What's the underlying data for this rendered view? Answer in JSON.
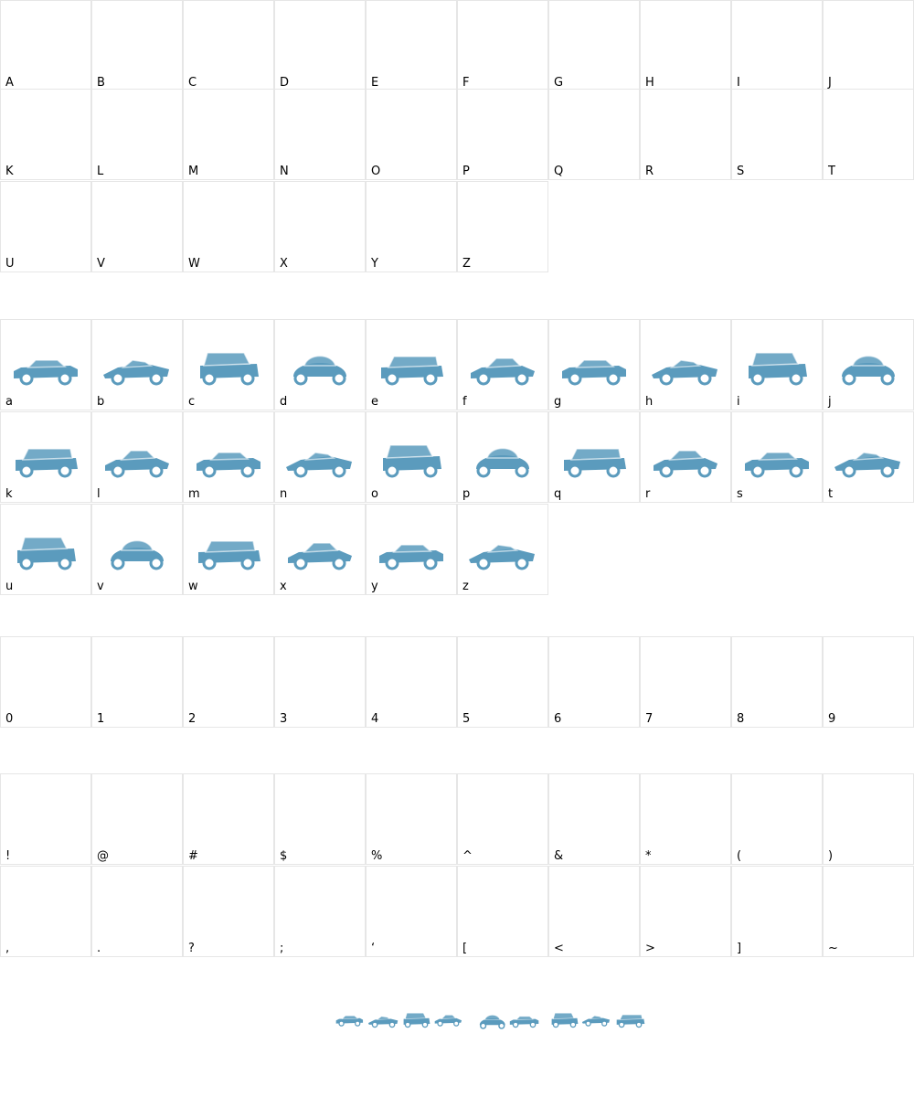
{
  "glyph_color": "#5b9bbd",
  "uppercase": [
    "A",
    "B",
    "C",
    "D",
    "E",
    "F",
    "G",
    "H",
    "I",
    "J",
    "K",
    "L",
    "M",
    "N",
    "O",
    "P",
    "Q",
    "R",
    "S",
    "T",
    "U",
    "V",
    "W",
    "X",
    "Y",
    "Z"
  ],
  "lowercase": [
    "a",
    "b",
    "c",
    "d",
    "e",
    "f",
    "g",
    "h",
    "i",
    "j",
    "k",
    "l",
    "m",
    "n",
    "o",
    "p",
    "q",
    "r",
    "s",
    "t",
    "u",
    "v",
    "w",
    "x",
    "y",
    "z"
  ],
  "digits": [
    "0",
    "1",
    "2",
    "3",
    "4",
    "5",
    "6",
    "7",
    "8",
    "9"
  ],
  "symbols": [
    "!",
    "@",
    "#",
    "$",
    "%",
    "^",
    "&",
    "*",
    "(",
    ")",
    ",",
    ".",
    "?",
    ";",
    "‘",
    "[",
    "<",
    ">",
    "]",
    "~"
  ],
  "car_glyph_icons": [
    "sedan-car-icon",
    "sports-car-icon",
    "suv-car-icon",
    "beetle-car-icon",
    "roadster-car-icon",
    "coupe-car-icon",
    "van-car-icon",
    "sedan-car-icon",
    "mini-car-icon",
    "coupe-car-icon",
    "sedan-car-icon",
    "classic-car-icon",
    "wagon-car-icon",
    "convertible-car-icon",
    "roadster-car-icon",
    "vintage-car-icon",
    "cartoon-car-icon",
    "sedan-car-icon",
    "sports-car-icon",
    "sedan-car-icon",
    "coupe-car-icon",
    "sedan-car-icon"
  ]
}
